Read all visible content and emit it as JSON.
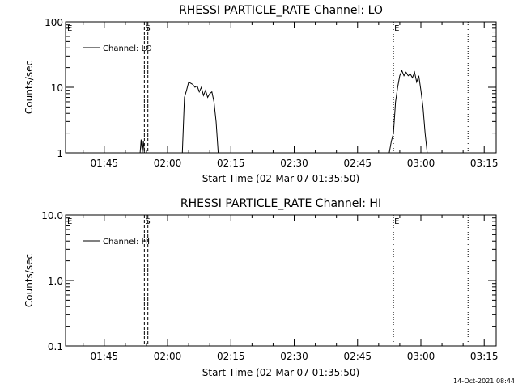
{
  "footer": {
    "timestamp": "14-Oct-2021 08:44"
  },
  "chart_data": [
    {
      "type": "line",
      "title": "RHESSI PARTICLE_RATE Channel: LO",
      "xlabel": "Start Time (02-Mar-07 01:35:50)",
      "ylabel": "Counts/sec",
      "y_scale": "log",
      "ylim": [
        1,
        100
      ],
      "xlim": [
        "01:35:50",
        "03:17:50"
      ],
      "x_ticks": [
        "01:45",
        "02:00",
        "02:15",
        "02:30",
        "02:45",
        "03:00",
        "03:15"
      ],
      "y_ticks": [
        "1",
        "10",
        "100"
      ],
      "legend": {
        "placement": "top-left",
        "entry": "Channel: LO"
      },
      "markers": [
        {
          "time": "01:54:30",
          "style": "dashed",
          "label": "S"
        },
        {
          "time": "01:55:20",
          "style": "dashed",
          "label": ""
        },
        {
          "time": "02:53:30",
          "style": "dotted",
          "label": "E"
        },
        {
          "time": "03:11:10",
          "style": "dotted",
          "label": ""
        }
      ],
      "corner_label": "E",
      "series": [
        {
          "name": "Channel: LO",
          "points": [
            [
              "01:53:30",
              1.0
            ],
            [
              "01:53:45",
              1.6
            ],
            [
              "01:54:00",
              1.0
            ],
            [
              "01:54:15",
              1.5
            ],
            [
              "01:54:30",
              1.0
            ],
            [
              "02:03:30",
              1.0
            ],
            [
              "02:04:00",
              7.0
            ],
            [
              "02:04:30",
              9.0
            ],
            [
              "02:05:00",
              12.0
            ],
            [
              "02:05:30",
              11.5
            ],
            [
              "02:06:00",
              11.0
            ],
            [
              "02:06:30",
              10.0
            ],
            [
              "02:07:00",
              10.5
            ],
            [
              "02:07:30",
              8.5
            ],
            [
              "02:08:00",
              10.0
            ],
            [
              "02:08:30",
              7.5
            ],
            [
              "02:09:00",
              9.0
            ],
            [
              "02:09:30",
              7.0
            ],
            [
              "02:10:00",
              8.0
            ],
            [
              "02:10:30",
              8.5
            ],
            [
              "02:11:00",
              6.0
            ],
            [
              "02:11:30",
              3.0
            ],
            [
              "02:12:00",
              1.0
            ],
            [
              "02:52:30",
              1.0
            ],
            [
              "02:53:00",
              1.5
            ],
            [
              "02:53:30",
              2.0
            ],
            [
              "02:54:00",
              6.0
            ],
            [
              "02:54:30",
              10.0
            ],
            [
              "02:55:00",
              15.0
            ],
            [
              "02:55:30",
              18.0
            ],
            [
              "02:56:00",
              15.0
            ],
            [
              "02:56:30",
              17.0
            ],
            [
              "02:57:00",
              15.0
            ],
            [
              "02:57:30",
              16.0
            ],
            [
              "02:58:00",
              14.0
            ],
            [
              "02:58:30",
              17.0
            ],
            [
              "02:59:00",
              12.0
            ],
            [
              "02:59:30",
              15.0
            ],
            [
              "03:00:00",
              9.0
            ],
            [
              "03:00:30",
              5.0
            ],
            [
              "03:01:00",
              2.0
            ],
            [
              "03:01:30",
              1.0
            ]
          ]
        }
      ]
    },
    {
      "type": "line",
      "title": "RHESSI PARTICLE_RATE Channel: HI",
      "xlabel": "Start Time (02-Mar-07 01:35:50)",
      "ylabel": "Counts/sec",
      "y_scale": "log",
      "ylim": [
        0.1,
        10
      ],
      "xlim": [
        "01:35:50",
        "03:17:50"
      ],
      "x_ticks": [
        "01:45",
        "02:00",
        "02:15",
        "02:30",
        "02:45",
        "03:00",
        "03:15"
      ],
      "y_ticks": [
        "0.1",
        "1.0",
        "10.0"
      ],
      "legend": {
        "placement": "top-left",
        "entry": "Channel: HI"
      },
      "markers": [
        {
          "time": "01:54:30",
          "style": "dashed",
          "label": "S"
        },
        {
          "time": "01:55:20",
          "style": "dashed",
          "label": ""
        },
        {
          "time": "02:53:30",
          "style": "dotted",
          "label": "E"
        },
        {
          "time": "03:11:10",
          "style": "dotted",
          "label": ""
        }
      ],
      "corner_label": "E",
      "series": [
        {
          "name": "Channel: HI",
          "points": []
        }
      ]
    }
  ]
}
